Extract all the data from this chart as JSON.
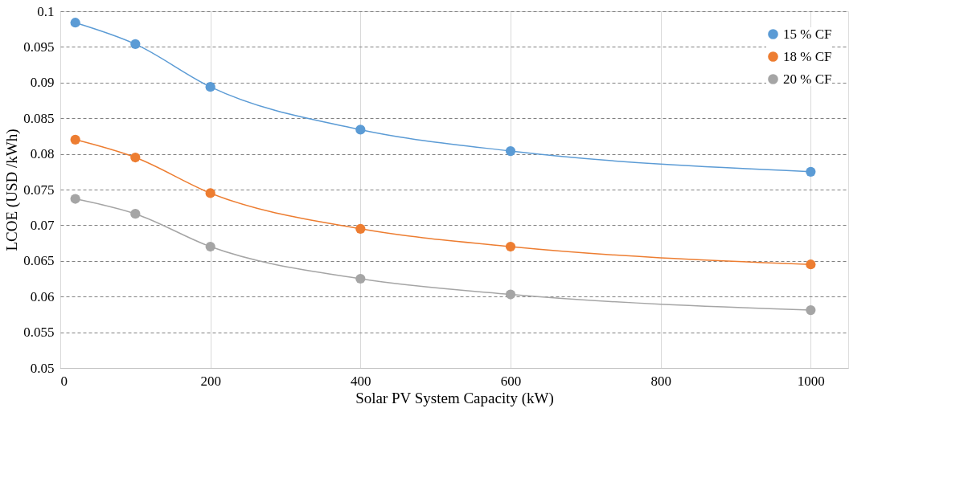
{
  "chart_data": {
    "type": "line",
    "xlabel": "Solar PV System Capacity (kW)",
    "ylabel": "LCOE (USD  /kWh)",
    "x": [
      20,
      100,
      200,
      400,
      600,
      1000
    ],
    "series": [
      {
        "name": "15 % CF",
        "color": "#5b9bd5",
        "values": [
          0.0984,
          0.0954,
          0.0894,
          0.0834,
          0.0804,
          0.0775
        ]
      },
      {
        "name": "18 % CF",
        "color": "#ed7d31",
        "values": [
          0.082,
          0.0795,
          0.0745,
          0.0695,
          0.067,
          0.0645
        ]
      },
      {
        "name": "20 % CF",
        "color": "#a5a5a5",
        "values": [
          0.0737,
          0.0716,
          0.067,
          0.0625,
          0.0603,
          0.0581
        ]
      }
    ],
    "xlim": [
      0,
      1050
    ],
    "xticks": [
      0,
      200,
      400,
      600,
      800,
      1000
    ],
    "ylim": [
      0.05,
      0.1
    ],
    "yticks": [
      0.05,
      0.055,
      0.06,
      0.065,
      0.07,
      0.075,
      0.08,
      0.085,
      0.09,
      0.095,
      0.1
    ],
    "grid": true,
    "legend": "top right",
    "marker": "circle",
    "line_style": "solid"
  }
}
